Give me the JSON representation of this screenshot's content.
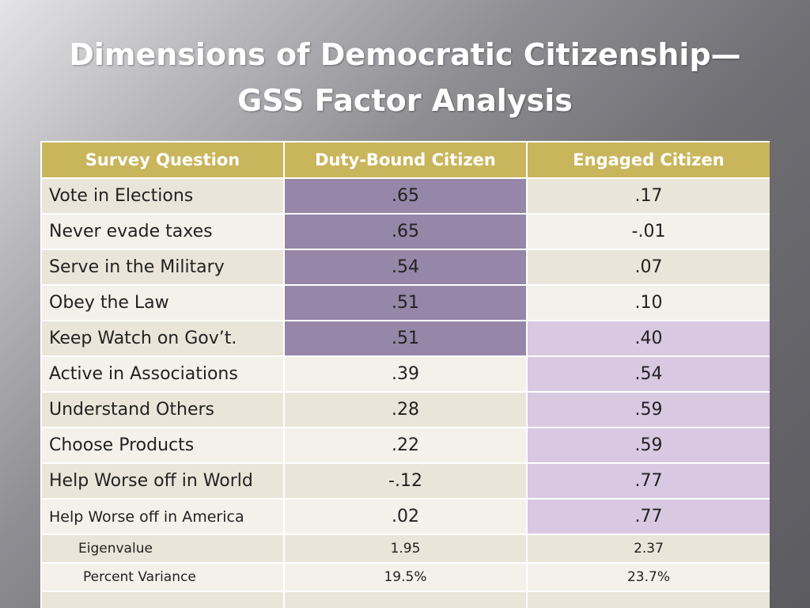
{
  "title": {
    "line1": "Dimensions of Democratic Citizenship—",
    "line2": "GSS Factor Analysis"
  },
  "colors": {
    "header_gold": "#c9b55b",
    "duty_highlight": "#9686a8",
    "engaged_highlight": "#d9c8e2",
    "row_odd": "#e9e5d8",
    "row_even": "#f3f1ea"
  },
  "table": {
    "headers": [
      "Survey Question",
      "Duty-Bound Citizen",
      "Engaged Citizen"
    ],
    "rows": [
      {
        "question": "Vote in Elections",
        "duty": ".65",
        "engaged": ".17"
      },
      {
        "question": "Never evade taxes",
        "duty": ".65",
        "engaged": "-.01"
      },
      {
        "question": "Serve in the Military",
        "duty": ".54",
        "engaged": ".07"
      },
      {
        "question": "Obey the Law",
        "duty": ".51",
        "engaged": ".10"
      },
      {
        "question": "Keep Watch on Gov’t.",
        "duty": ".51",
        "engaged": ".40"
      },
      {
        "question": "Active in Associations",
        "duty": ".39",
        "engaged": ".54"
      },
      {
        "question": "Understand Others",
        "duty": ".28",
        "engaged": ".59"
      },
      {
        "question": "Choose Products",
        "duty": ".22",
        "engaged": ".59"
      },
      {
        "question": "Help Worse off in World",
        "duty": "-.12",
        "engaged": ".77"
      },
      {
        "question": "Help Worse off in America",
        "duty": ".02",
        "engaged": ".77"
      }
    ],
    "eigenvalue": {
      "label": "Eigenvalue",
      "duty": "1.95",
      "engaged": "2.37"
    },
    "percent_variance": {
      "label": "Percent Variance",
      "duty": "19.5%",
      "engaged": "23.7%"
    }
  }
}
